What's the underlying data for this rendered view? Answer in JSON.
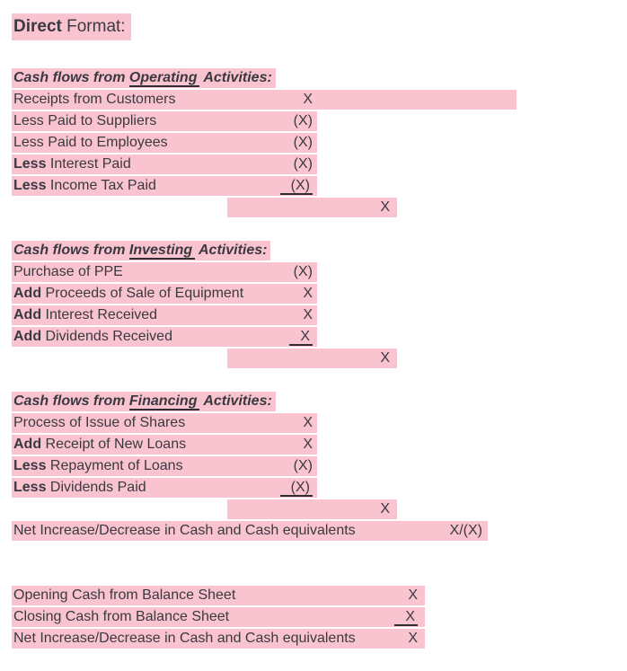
{
  "colors": {
    "highlight": "#f9c4d0",
    "text": "#3a3940"
  },
  "title": {
    "bold": "Direct",
    "rest": " Format:"
  },
  "sections": [
    {
      "heading": {
        "pre": "Cash flows from ",
        "word": "Operating",
        "post": " Activities:"
      },
      "rows": [
        {
          "prefix": "",
          "label": "Receipts from Customers",
          "value": "X"
        },
        {
          "prefix": "",
          "label": "Less Paid to Suppliers",
          "value": "(X)"
        },
        {
          "prefix": "",
          "label": "Less Paid to Employees",
          "value": "(X)"
        },
        {
          "prefix": "Less",
          "label": " Interest Paid",
          "value": "(X)"
        },
        {
          "prefix": "Less",
          "label": " Income Tax Paid",
          "value": "(X)"
        }
      ],
      "subtotal": "X"
    },
    {
      "heading": {
        "pre": "Cash flows from ",
        "word": "Investing",
        "post": " Activities:"
      },
      "rows": [
        {
          "prefix": "",
          "label": "Purchase of PPE",
          "value": "(X)"
        },
        {
          "prefix": "Add",
          "label": " Proceeds of Sale of Equipment",
          "value": "X"
        },
        {
          "prefix": "Add",
          "label": " Interest Received",
          "value": "X"
        },
        {
          "prefix": "Add",
          "label": " Dividends Received",
          "value": "X"
        }
      ],
      "subtotal": "X"
    },
    {
      "heading": {
        "pre": "Cash flows from ",
        "word": "Financing",
        "post": " Activities:"
      },
      "rows": [
        {
          "prefix": "",
          "label": "Process of Issue of Shares",
          "value": "X"
        },
        {
          "prefix": "Add",
          "label": " Receipt of New Loans",
          "value": "X"
        },
        {
          "prefix": "Less",
          "label": " Repayment of Loans",
          "value": "(X)"
        },
        {
          "prefix": "Less",
          "label": " Dividends Paid",
          "value": "(X)"
        }
      ],
      "subtotal": "X"
    }
  ],
  "net_row": {
    "label": "Net Increase/Decrease in Cash and Cash equivalents",
    "value": "X/(X)"
  },
  "bottom_rows": [
    {
      "label": "Opening Cash from Balance Sheet",
      "value": "X"
    },
    {
      "label": "Closing Cash from Balance Sheet",
      "value": "X"
    },
    {
      "label": "Net Increase/Decrease in Cash and Cash equivalents",
      "value": "X"
    }
  ]
}
